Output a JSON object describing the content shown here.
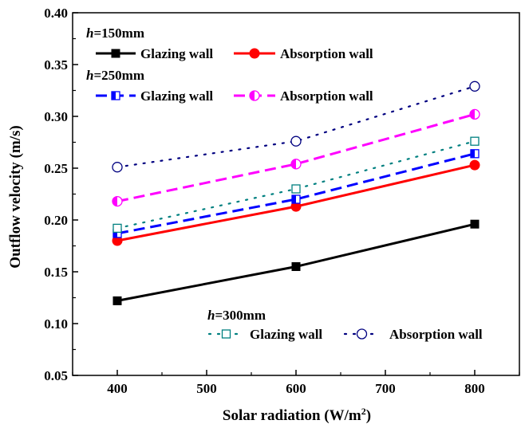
{
  "chart_data": {
    "type": "line",
    "xlabel": "Solar radiation (W/m",
    "xlabel_sup": "2",
    "xlabel_end": ")",
    "ylabel": "Outflow velocity (m/s)",
    "xlim": [
      350,
      850
    ],
    "ylim": [
      0.05,
      0.4
    ],
    "xticks": [
      400,
      500,
      600,
      700,
      800
    ],
    "yticks": [
      0.05,
      0.1,
      0.15,
      0.2,
      0.25,
      0.3,
      0.35,
      0.4
    ],
    "xtick_labels": [
      "400",
      "500",
      "600",
      "700",
      "800"
    ],
    "ytick_labels": [
      "0.05",
      "0.10",
      "0.15",
      "0.20",
      "0.25",
      "0.30",
      "0.35",
      "0.40"
    ],
    "x": [
      400,
      600,
      800
    ],
    "series": [
      {
        "name": "Glazing wall",
        "group": "h150",
        "values": [
          0.122,
          0.155,
          0.196
        ],
        "color": "#000000",
        "dash": "solid",
        "marker": "square-filled"
      },
      {
        "name": "Absorption wall",
        "group": "h150",
        "values": [
          0.18,
          0.213,
          0.253
        ],
        "color": "#ff0000",
        "dash": "solid",
        "marker": "circle-filled"
      },
      {
        "name": "Glazing wall",
        "group": "h250",
        "values": [
          0.187,
          0.22,
          0.264
        ],
        "color": "#0000ff",
        "dash": "dash",
        "marker": "square-half"
      },
      {
        "name": "Absorption wall",
        "group": "h250",
        "values": [
          0.218,
          0.254,
          0.302
        ],
        "color": "#ff00ff",
        "dash": "dash",
        "marker": "circle-half"
      },
      {
        "name": "Glazing wall",
        "group": "h300",
        "values": [
          0.192,
          0.23,
          0.276
        ],
        "color": "#008080",
        "dash": "dot",
        "marker": "square-open"
      },
      {
        "name": "Absorption wall",
        "group": "h300",
        "values": [
          0.251,
          0.276,
          0.329
        ],
        "color": "#000080",
        "dash": "dot",
        "marker": "circle-open"
      }
    ],
    "legend": {
      "h150": {
        "h_prefix": "h",
        "h_value": "=150mm"
      },
      "h250": {
        "h_prefix": "h",
        "h_value": "=250mm"
      },
      "h300": {
        "h_prefix": "h",
        "h_value": "=300mm"
      }
    },
    "grid": false
  }
}
